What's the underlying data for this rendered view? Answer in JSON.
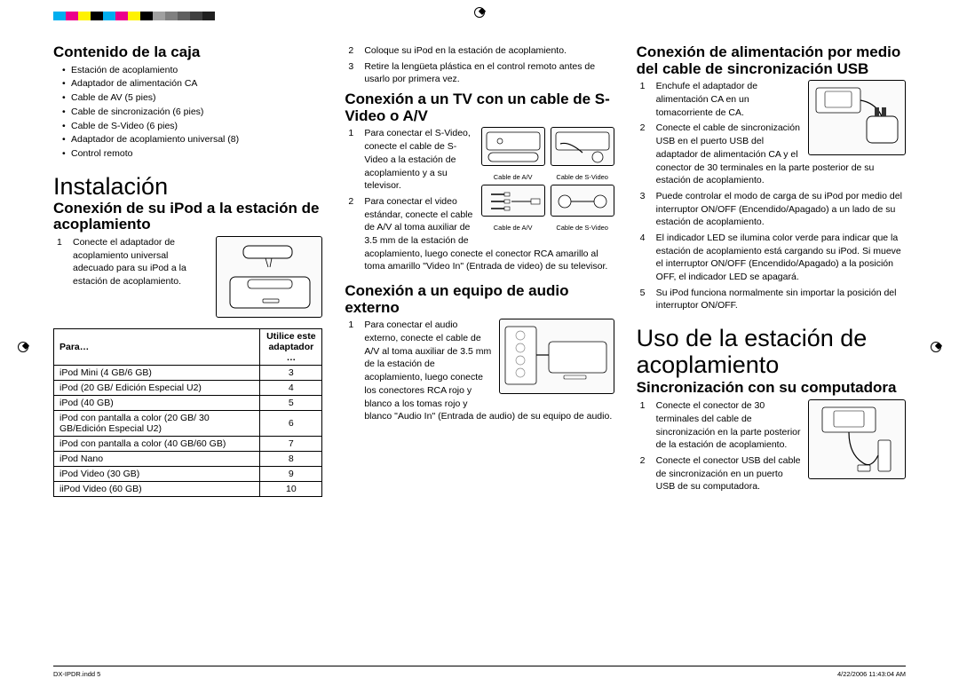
{
  "color_bar": [
    "#00aeef",
    "#ec008c",
    "#fff200",
    "#000000",
    "#00aeef",
    "#ec008c",
    "#fff200",
    "#000000",
    "#a0a0a0",
    "#808080",
    "#606060",
    "#404040",
    "#202020"
  ],
  "col1": {
    "h_contenido": "Contenido de la caja",
    "contents": [
      "Estación de acoplamiento",
      "Adaptador de alimentación CA",
      "Cable de AV (5 pies)",
      "Cable de sincronización (6 pies)",
      "Cable de S-Video (6 pies)",
      "Adaptador de acoplamiento universal (8)",
      "Control remoto"
    ],
    "h_instalacion": "Instalación",
    "h_conexion_ipod": "Conexión de su iPod a la estación de acoplamiento",
    "step1": "Conecte el adaptador de acoplamiento universal adecuado para su iPod a la estación de acoplamiento.",
    "table": {
      "head_para": "Para…",
      "head_util": "Utilice este adaptador …",
      "rows": [
        [
          "iPod Mini (4 GB/6 GB)",
          "3"
        ],
        [
          "iPod (20 GB/ Edición Especial U2)",
          "4"
        ],
        [
          "iPod (40 GB)",
          "5"
        ],
        [
          "iPod con pantalla a color (20 GB/ 30 GB/Edición Especial U2)",
          "6"
        ],
        [
          "iPod con pantalla a color (40 GB/60 GB)",
          "7"
        ],
        [
          "iPod Nano",
          "8"
        ],
        [
          "iPod Video (30 GB)",
          "9"
        ],
        [
          "iiPod Video (60 GB)",
          "10"
        ]
      ]
    }
  },
  "col2": {
    "step2": "Coloque su iPod en la estación de acoplamiento.",
    "step3": "Retire la lengüeta plástica en el control remoto antes de usarlo por primera vez.",
    "h_tv": "Conexión a un TV con un cable de S-Video o A/V",
    "tv_step1": "Para conectar el S-Video, conecte el cable de S-Video a la estación de acoplamiento y a su televisor.",
    "tv_step2": "Para conectar el video estándar, conecte el cable de A/V al toma auxiliar de 3.5 mm de la estación de acoplamiento, luego conecte el conector RCA amarillo al toma amarillo \"Video In\" (Entrada de video) de su televisor.",
    "cable_av": "Cable de A/V",
    "cable_sv": "Cable de S-Video",
    "h_audio": "Conexión a un equipo de audio externo",
    "audio_step1": "Para conectar el audio externo, conecte el cable de A/V al toma auxiliar de 3.5 mm de la estación de acoplamiento, luego conecte los conectores RCA rojo y blanco a los tomas rojo y blanco \"Audio In\" (Entrada de audio) de su equipo de audio."
  },
  "col3": {
    "h_power": "Conexión de alimentación por medio del cable de sincronización USB",
    "p1": "Enchufe el adaptador de alimentación CA en un tomacorriente de CA.",
    "p2": "Conecte el cable de sincronización USB en el puerto USB del adaptador de alimentación CA y el conector de 30 terminales en la parte posterior de su estación de acoplamiento.",
    "p3": "Puede controlar el modo de carga de su iPod por medio del interruptor ON/OFF (Encendido/Apagado) a un lado de su estación de acoplamiento.",
    "p4": "El indicador LED se ilumina color verde para indicar que la estación de acoplamiento está cargando su iPod.  Si mueve el interruptor ON/OFF (Encendido/Apagado) a la posición OFF, el indicador LED se apagará.",
    "p5": "Su iPod funciona normalmente sin importar la posición del interruptor ON/OFF.",
    "h_uso": "Uso de la estación de acoplamiento",
    "h_sync": "Sincronización con su computadora",
    "s1": "Conecte el conector de 30 terminales del cable de sincronización en la parte posterior de la estación de acoplamiento.",
    "s2": "Conecte el conector USB del cable de sincronización en un puerto USB de su computadora."
  },
  "footer": {
    "left": "DX-IPDR.indd   5",
    "right": "4/22/2006   11:43:04 AM"
  }
}
